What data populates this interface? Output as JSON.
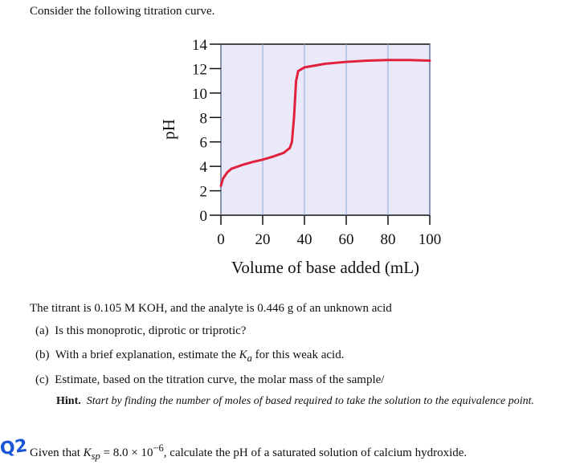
{
  "intro": "Consider the following titration curve.",
  "chart_data": {
    "type": "line",
    "xlabel": "Volume of base added (mL)",
    "ylabel": "pH",
    "x": [
      0,
      1,
      3,
      5,
      10,
      15,
      20,
      25,
      30,
      33,
      34,
      35,
      36,
      37,
      40,
      50,
      60,
      70,
      80,
      90,
      100
    ],
    "series": [
      {
        "color": "#e0203c",
        "values": [
          2.4,
          3.0,
          3.5,
          3.8,
          4.1,
          4.35,
          4.55,
          4.8,
          5.1,
          5.5,
          6.0,
          8.0,
          11.0,
          11.8,
          12.1,
          12.4,
          12.55,
          12.65,
          12.7,
          12.7,
          12.65
        ]
      }
    ],
    "xlim": [
      0,
      100
    ],
    "ylim": [
      0,
      14
    ],
    "xticks": [
      0,
      20,
      40,
      60,
      80,
      100
    ],
    "yticks": [
      0,
      2,
      4,
      6,
      8,
      10,
      12,
      14
    ],
    "grid": true
  },
  "questions": {
    "lead": "The titrant is 0.105 M KOH, and the analyte is 0.446 g of an unknown acid",
    "a": {
      "label": "(a)",
      "text": "Is this monoprotic, diprotic or triprotic?"
    },
    "b": {
      "label": "(b)",
      "before": "With a brief explanation, estimate the ",
      "symbol": "K",
      "sub": "a",
      "after": " for this weak acid."
    },
    "c": {
      "label": "(c)",
      "text": "Estimate, based on the titration curve, the molar mass of the sample/"
    },
    "hint": {
      "label": "Hint.",
      "text": "Start by finding the number of moles of based required to take the solution to the equivalence point."
    }
  },
  "q2": {
    "mark": "Q2",
    "before": "Given that ",
    "symbol": "K",
    "sub": "sp",
    "middle": " = 8.0 × 10",
    "sup": "−6",
    "after": ", calculate the pH of a saturated solution of calcium hydroxide."
  }
}
